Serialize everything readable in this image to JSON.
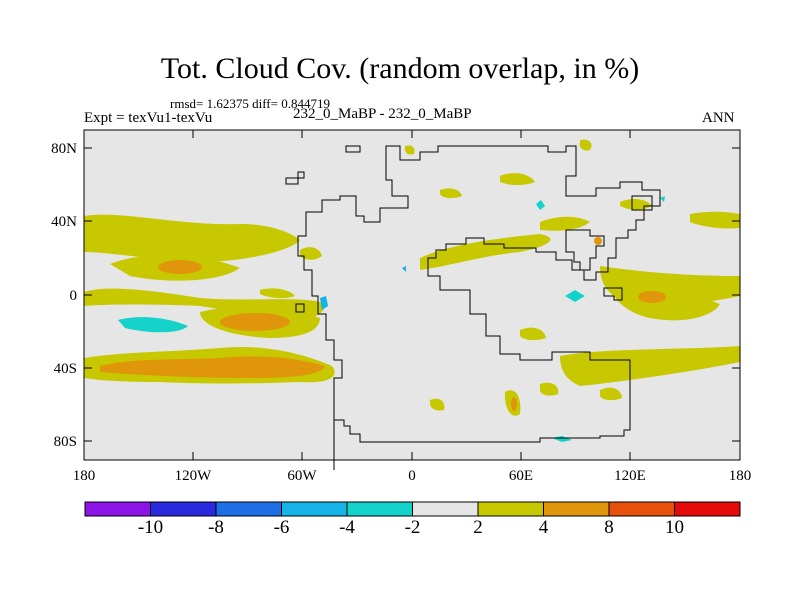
{
  "header": {
    "title": "Tot. Cloud Cov. (random overlap, in %)",
    "stats": "rmsd= 1.62375 diff= 0.844719",
    "expt": "Expt = texVu1-texVu",
    "run": "232_0_MaBP - 232_0_MaBP",
    "season": "ANN"
  },
  "axes": {
    "lat_labels": [
      "80N",
      "40N",
      "0",
      "40S",
      "80S"
    ],
    "lon_labels": [
      "180",
      "120W",
      "60W",
      "0",
      "60E",
      "120E",
      "180"
    ]
  },
  "colors": {
    "background": "#e6e6e6",
    "coast": "#000000",
    "bin_2_4": "#c8c800",
    "bin_4_8": "#e0960a",
    "bin_m4_m2": "#14d2c8",
    "bin_m6_m4": "#14b4e6"
  },
  "colorbar": {
    "colors": [
      "#8c14e6",
      "#2828dc",
      "#1e6ee6",
      "#14b4e6",
      "#14d2c8",
      "#e6e6e6",
      "#c8c800",
      "#e0960a",
      "#e6500a",
      "#e60a0a"
    ],
    "labels": [
      "-10",
      "-8",
      "-6",
      "-4",
      "-2",
      "2",
      "4",
      "8",
      "10"
    ]
  }
}
